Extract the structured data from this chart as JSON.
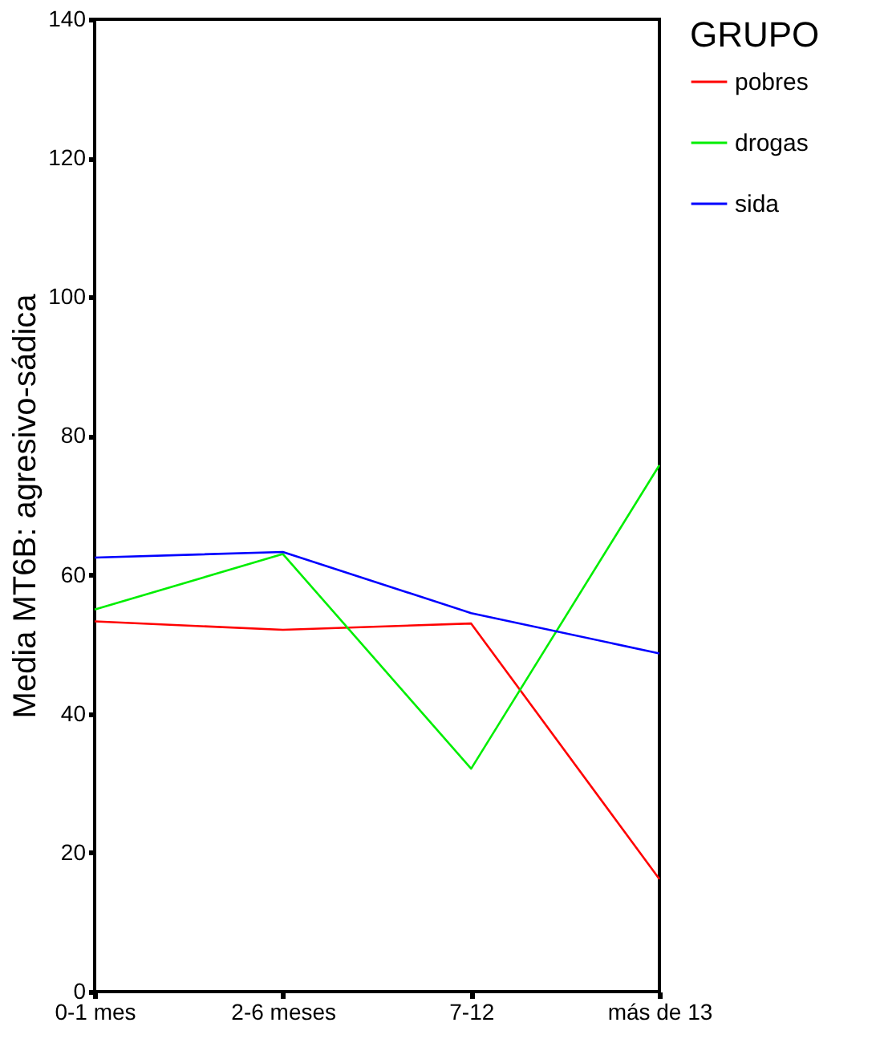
{
  "chart_data": {
    "type": "line",
    "ylabel": "Media MT6B: agresivo-sádica",
    "legend_title": "GRUPO",
    "categories": [
      "0-1 mes",
      "2-6 meses",
      "7-12",
      "más de 13"
    ],
    "series": [
      {
        "name": "pobres",
        "color": "#ff0000",
        "values": [
          53.3,
          52.1,
          53.0,
          16.2
        ]
      },
      {
        "name": "drogas",
        "color": "#00ee00",
        "values": [
          55.0,
          63.0,
          32.1,
          75.8
        ]
      },
      {
        "name": "sida",
        "color": "#0000ff",
        "values": [
          62.5,
          63.3,
          54.5,
          48.7
        ]
      }
    ],
    "ylim": [
      0,
      140
    ],
    "yticks": [
      0,
      20,
      40,
      60,
      80,
      100,
      120,
      140
    ],
    "grid": false,
    "legend": "right",
    "marker": "none",
    "line_style": "solid"
  }
}
